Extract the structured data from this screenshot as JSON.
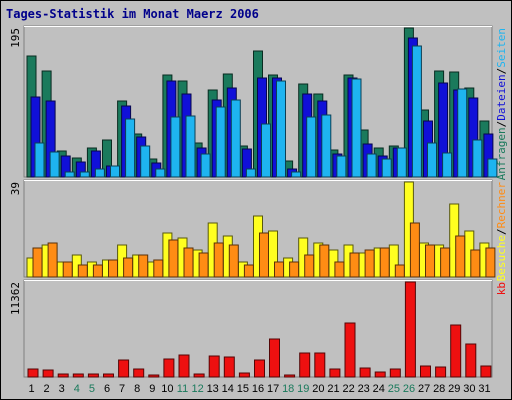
{
  "chart_data": {
    "type": "bar",
    "title": "Tages-Statistik im Monat Maerz 2006",
    "categories": [
      "1",
      "2",
      "3",
      "4",
      "5",
      "6",
      "7",
      "8",
      "9",
      "10",
      "11",
      "12",
      "13",
      "14",
      "15",
      "16",
      "17",
      "18",
      "19",
      "20",
      "21",
      "22",
      "23",
      "24",
      "25",
      "26",
      "27",
      "28",
      "29",
      "30",
      "31"
    ],
    "weekend_days": [
      4,
      5,
      11,
      12,
      18,
      19,
      25,
      26
    ],
    "colors": {
      "anfragen": "#1a7a5c",
      "dateien": "#1010d8",
      "seiten": "#1eb4f0",
      "besuche": "#ffff20",
      "rechner": "#ff8c14",
      "kb": "#ee1010",
      "day_normal": "#000000",
      "day_weekend": "#1a7a5c"
    },
    "panels": [
      {
        "id": "top",
        "max_label": "195",
        "ymax": 195,
        "legend": [
          {
            "text": "Anfragen",
            "color": "#1a7a5c"
          },
          {
            "text": "Dateien",
            "color": "#1010d8"
          },
          {
            "text": "Seiten",
            "color": "#1eb4f0"
          }
        ],
        "series": [
          {
            "name": "Anfragen",
            "values": [
              158,
              139,
              34,
              25,
              38,
              49,
              100,
              56,
              23,
              133,
              126,
              44,
              114,
              135,
              41,
              165,
              133,
              21,
              122,
              109,
              35,
              133,
              61,
              38,
              41,
              195,
              88,
              139,
              137,
              117,
              73
            ]
          },
          {
            "name": "Dateien",
            "values": [
              105,
              100,
              27,
              20,
              34,
              14,
              93,
              53,
              18,
              125,
              109,
              38,
              101,
              117,
              36,
              130,
              130,
              10,
              108,
              100,
              30,
              130,
              43,
              28,
              38,
              182,
              73,
              123,
              114,
              104,
              56
            ]
          },
          {
            "name": "Seiten",
            "values": [
              44,
              33,
              6,
              6,
              11,
              14,
              76,
              40,
              10,
              79,
              80,
              30,
              92,
              101,
              11,
              69,
              126,
              7,
              79,
              81,
              27,
              128,
              30,
              23,
              38,
              172,
              44,
              31,
              115,
              49,
              24
            ]
          }
        ]
      },
      {
        "id": "middle",
        "max_label": "39",
        "ymax": 39,
        "legend": [
          {
            "text": "Besuche",
            "color": "#ffff20"
          },
          {
            "text": "Rechner",
            "color": "#ff8c14"
          }
        ],
        "series": [
          {
            "name": "Besuche",
            "values": [
              8,
              13,
              6,
              9,
              6,
              7,
              13,
              9,
              6,
              18,
              16,
              11,
              22,
              17,
              6,
              25,
              19,
              8,
              16,
              14,
              11,
              13,
              10,
              12,
              13,
              39,
              14,
              13,
              30,
              19,
              14
            ]
          },
          {
            "name": "Rechner",
            "values": [
              12,
              14,
              6,
              5,
              5,
              7,
              8,
              9,
              7,
              15,
              12,
              10,
              14,
              13,
              5,
              18,
              6,
              6,
              9,
              13,
              6,
              10,
              11,
              12,
              5,
              22,
              13,
              12,
              17,
              11,
              12
            ]
          }
        ]
      },
      {
        "id": "bottom",
        "max_label": "11362",
        "ymax": 11362,
        "legend": [
          {
            "text": "kb",
            "color": "#ee1010"
          }
        ],
        "series": [
          {
            "name": "kb",
            "values": [
              1000,
              800,
              350,
              300,
              300,
              300,
              2000,
              900,
              200,
              2100,
              2600,
              300,
              2500,
              2400,
              500,
              2000,
              4600,
              200,
              2900,
              2900,
              900,
              6400,
              1100,
              600,
              900,
              11362,
              1300,
              1200,
              6200,
              3900,
              1300
            ]
          }
        ]
      }
    ]
  }
}
